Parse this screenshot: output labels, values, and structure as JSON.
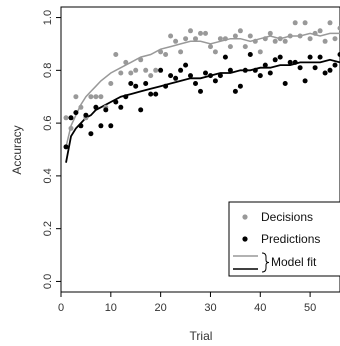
{
  "chart_data": {
    "type": "scatter",
    "xlabel": "Trial",
    "ylabel": "Accuracy",
    "xlim": [
      0,
      56
    ],
    "ylim": [
      -0.04,
      1.04
    ],
    "xticks": [
      "0",
      "10",
      "20",
      "30",
      "40",
      "50"
    ],
    "yticks": [
      "0.0",
      "0.2",
      "0.4",
      "0.6",
      "0.8",
      "1.0"
    ],
    "grid": false,
    "legend_position": "bottom-right",
    "series": [
      {
        "name": "Decisions",
        "kind": "points",
        "color": "#999999",
        "x": [
          1,
          2,
          3,
          4,
          5,
          6,
          7,
          8,
          9,
          10,
          11,
          12,
          13,
          14,
          15,
          16,
          17,
          18,
          19,
          20,
          21,
          22,
          23,
          24,
          25,
          26,
          27,
          28,
          29,
          30,
          31,
          32,
          33,
          34,
          35,
          36,
          37,
          38,
          39,
          40,
          41,
          42,
          43,
          44,
          45,
          46,
          47,
          48,
          49,
          50,
          51,
          52,
          53,
          54,
          55,
          56
        ],
        "y": [
          0.62,
          0.58,
          0.7,
          0.66,
          0.62,
          0.7,
          0.7,
          0.7,
          0.66,
          0.75,
          0.86,
          0.79,
          0.83,
          0.79,
          0.8,
          0.84,
          0.8,
          0.78,
          0.8,
          0.87,
          0.86,
          0.93,
          0.91,
          0.87,
          0.92,
          0.95,
          0.92,
          0.94,
          0.94,
          0.89,
          0.87,
          0.92,
          0.92,
          0.89,
          0.93,
          0.95,
          0.89,
          0.93,
          0.91,
          0.87,
          0.92,
          0.94,
          0.91,
          0.92,
          0.91,
          0.93,
          0.98,
          0.93,
          0.98,
          0.92,
          0.94,
          0.95,
          0.91,
          0.98,
          0.92,
          0.96
        ]
      },
      {
        "name": "Predictions",
        "kind": "points",
        "color": "#000000",
        "x": [
          1,
          2,
          3,
          4,
          5,
          6,
          7,
          8,
          9,
          10,
          11,
          12,
          13,
          14,
          15,
          16,
          17,
          18,
          19,
          20,
          21,
          22,
          23,
          24,
          25,
          26,
          27,
          28,
          29,
          30,
          31,
          32,
          33,
          34,
          35,
          36,
          37,
          38,
          39,
          40,
          41,
          42,
          43,
          44,
          45,
          46,
          47,
          48,
          49,
          50,
          51,
          52,
          53,
          54,
          55,
          56
        ],
        "y": [
          0.51,
          0.62,
          0.64,
          0.59,
          0.63,
          0.56,
          0.66,
          0.59,
          0.65,
          0.59,
          0.68,
          0.66,
          0.7,
          0.75,
          0.74,
          0.65,
          0.75,
          0.71,
          0.71,
          0.8,
          0.74,
          0.78,
          0.77,
          0.8,
          0.82,
          0.78,
          0.75,
          0.72,
          0.79,
          0.78,
          0.76,
          0.78,
          0.85,
          0.8,
          0.72,
          0.74,
          0.8,
          0.86,
          0.8,
          0.78,
          0.82,
          0.79,
          0.84,
          0.85,
          0.75,
          0.83,
          0.83,
          0.81,
          0.76,
          0.85,
          0.81,
          0.85,
          0.79,
          0.8,
          0.82,
          0.86
        ]
      },
      {
        "kind": "line",
        "color": "#999999",
        "x": [
          1,
          2,
          3,
          4,
          5,
          6,
          7,
          8,
          10,
          12,
          14,
          16,
          18,
          20,
          22,
          24,
          26,
          28,
          30,
          32,
          34,
          36,
          38,
          40,
          42,
          44,
          46,
          48,
          50,
          52,
          54,
          56
        ],
        "y": [
          0.51,
          0.59,
          0.63,
          0.67,
          0.7,
          0.72,
          0.74,
          0.76,
          0.79,
          0.81,
          0.83,
          0.85,
          0.86,
          0.88,
          0.89,
          0.9,
          0.91,
          0.91,
          0.9,
          0.91,
          0.92,
          0.92,
          0.91,
          0.92,
          0.93,
          0.92,
          0.93,
          0.93,
          0.94,
          0.93,
          0.94,
          0.94
        ]
      },
      {
        "kind": "line",
        "color": "#000000",
        "x": [
          1,
          2,
          3,
          4,
          5,
          6,
          7,
          8,
          10,
          12,
          14,
          16,
          18,
          20,
          22,
          24,
          26,
          28,
          30,
          32,
          34,
          36,
          38,
          40,
          42,
          44,
          46,
          48,
          50,
          52,
          54,
          56
        ],
        "y": [
          0.45,
          0.55,
          0.58,
          0.6,
          0.62,
          0.63,
          0.65,
          0.66,
          0.68,
          0.7,
          0.71,
          0.72,
          0.73,
          0.74,
          0.75,
          0.76,
          0.77,
          0.77,
          0.78,
          0.79,
          0.79,
          0.8,
          0.8,
          0.81,
          0.81,
          0.82,
          0.82,
          0.83,
          0.83,
          0.83,
          0.84,
          0.83
        ]
      }
    ],
    "legend": {
      "points": [
        "Decisions",
        "Predictions"
      ],
      "lines_label": "Model fit"
    }
  }
}
